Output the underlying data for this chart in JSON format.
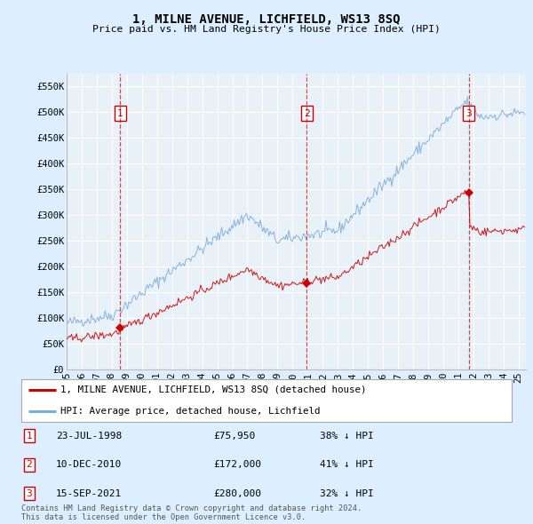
{
  "title": "1, MILNE AVENUE, LICHFIELD, WS13 8SQ",
  "subtitle": "Price paid vs. HM Land Registry's House Price Index (HPI)",
  "ylim": [
    0,
    575000
  ],
  "yticks": [
    0,
    50000,
    100000,
    150000,
    200000,
    250000,
    300000,
    350000,
    400000,
    450000,
    500000,
    550000
  ],
  "ytick_labels": [
    "£0",
    "£50K",
    "£100K",
    "£150K",
    "£200K",
    "£250K",
    "£300K",
    "£350K",
    "£400K",
    "£450K",
    "£500K",
    "£550K"
  ],
  "xlim_start": 1995.0,
  "xlim_end": 2025.5,
  "transactions": [
    {
      "num": 1,
      "date": "23-JUL-1998",
      "x": 1998.55,
      "price": 75950,
      "pct": "38%",
      "dir": "↓"
    },
    {
      "num": 2,
      "date": "10-DEC-2010",
      "x": 2010.94,
      "price": 172000,
      "pct": "41%",
      "dir": "↓"
    },
    {
      "num": 3,
      "date": "15-SEP-2021",
      "x": 2021.71,
      "price": 280000,
      "pct": "32%",
      "dir": "↓"
    }
  ],
  "legend_entries": [
    {
      "label": "1, MILNE AVENUE, LICHFIELD, WS13 8SQ (detached house)",
      "color": "#cc0000"
    },
    {
      "label": "HPI: Average price, detached house, Lichfield",
      "color": "#7aadda"
    }
  ],
  "footnote": "Contains HM Land Registry data © Crown copyright and database right 2024.\nThis data is licensed under the Open Government Licence v3.0.",
  "bg_color": "#ddeeff",
  "plot_bg_color": "#e8f0f8",
  "grid_color": "#ffffff",
  "marker_box_color": "#cc0000"
}
